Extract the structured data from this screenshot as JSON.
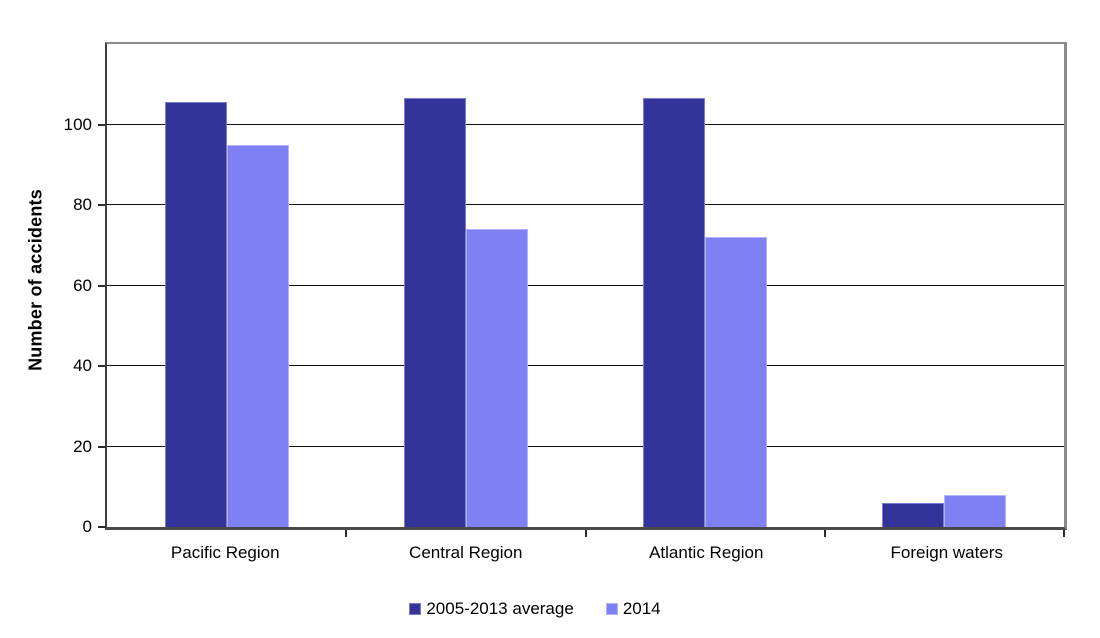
{
  "chart_data": {
    "type": "bar",
    "title": "",
    "categories": [
      "Pacific Region",
      "Central Region",
      "Atlantic Region",
      "Foreign waters"
    ],
    "series": [
      {
        "name": "2005-2013 average",
        "color": "#333399",
        "border_color": "#7d7dd0",
        "values": [
          105.5,
          106.5,
          106.5,
          6
        ]
      },
      {
        "name": "2014",
        "color": "#8080F5",
        "border_color": "#b3b3fb",
        "values": [
          95,
          74,
          72,
          8
        ]
      }
    ],
    "xlabel": "",
    "ylabel": "Number of accidents",
    "ylim": [
      0,
      120
    ],
    "ytick_step": 20,
    "ytick_labels": [
      "0",
      "20",
      "40",
      "60",
      "80",
      "100"
    ],
    "grid": true,
    "legend_position": "bottom"
  },
  "colors": {
    "background": "#ffffff",
    "gridline": "#0d0d0d",
    "axis": "#3d3d3d",
    "frame": "#8a8a8a"
  }
}
